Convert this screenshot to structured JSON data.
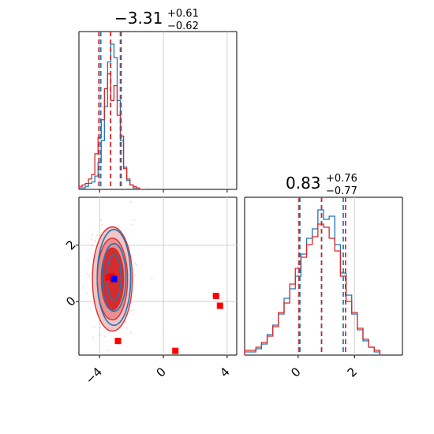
{
  "chart_data": [
    {
      "type": "histogram",
      "panel": "param1-marginal",
      "title": {
        "value": "−3.31",
        "plus": "+0.61",
        "minus": "−0.62"
      },
      "xlim": [
        -5.3,
        4.6
      ],
      "xticks": [
        -4,
        0,
        4
      ],
      "grid": true,
      "series": [
        {
          "color": "#1f77b4",
          "quantiles": [
            -3.93,
            -3.31,
            -2.7
          ]
        },
        {
          "color": "#d62728",
          "quantiles": [
            -4.05,
            -3.31,
            -2.65
          ]
        }
      ],
      "bins": [
        -5.3,
        -5.1,
        -4.9,
        -4.7,
        -4.5,
        -4.3,
        -4.1,
        -3.9,
        -3.7,
        -3.5,
        -3.3,
        -3.1,
        -2.9,
        -2.7,
        -2.5,
        -2.3,
        -2.1,
        -1.9,
        -1.7,
        -1.5,
        -1.3,
        -1.1
      ],
      "blue_counts": [
        0.01,
        0.01,
        0.02,
        0.04,
        0.05,
        0.09,
        0.18,
        0.33,
        0.56,
        0.86,
        0.98,
        0.89,
        0.6,
        0.33,
        0.15,
        0.06,
        0.03,
        0.01,
        0.01,
        0,
        0
      ],
      "red_counts": [
        0.02,
        0.03,
        0.04,
        0.07,
        0.1,
        0.24,
        0.35,
        0.47,
        0.68,
        0.78,
        0.6,
        0.7,
        0.5,
        0.36,
        0.14,
        0.07,
        0.03,
        0.02,
        0.01,
        0,
        0
      ]
    },
    {
      "type": "histogram",
      "panel": "param2-marginal",
      "title": {
        "value": "0.83",
        "plus": "+0.76",
        "minus": "−0.77"
      },
      "xlim": [
        -1.9,
        3.7
      ],
      "xticks": [
        0,
        2
      ],
      "grid": true,
      "series": [
        {
          "color": "#1f77b4",
          "quantiles": [
            0.06,
            0.83,
            1.6
          ]
        },
        {
          "color": "#d62728",
          "quantiles": [
            0.03,
            0.83,
            1.68
          ]
        }
      ],
      "bins": [
        -1.9,
        -1.7,
        -1.5,
        -1.3,
        -1.1,
        -0.9,
        -0.7,
        -0.5,
        -0.3,
        -0.1,
        0.1,
        0.3,
        0.5,
        0.7,
        0.9,
        1.1,
        1.3,
        1.5,
        1.7,
        1.9,
        2.1,
        2.3,
        2.5,
        2.7,
        2.9
      ],
      "blue_counts": [
        0.02,
        0.02,
        0.04,
        0.07,
        0.13,
        0.19,
        0.26,
        0.36,
        0.42,
        0.5,
        0.64,
        0.74,
        0.8,
        0.92,
        0.86,
        0.88,
        0.7,
        0.52,
        0.38,
        0.26,
        0.16,
        0.09,
        0.05,
        0.02
      ],
      "red_counts": [
        0.03,
        0.03,
        0.05,
        0.08,
        0.12,
        0.18,
        0.27,
        0.33,
        0.45,
        0.55,
        0.62,
        0.7,
        0.75,
        0.83,
        0.81,
        0.74,
        0.66,
        0.5,
        0.34,
        0.27,
        0.17,
        0.1,
        0.05,
        0.03
      ]
    },
    {
      "type": "scatter",
      "panel": "joint",
      "xlim": [
        -5.3,
        4.6
      ],
      "ylim": [
        -1.9,
        3.7
      ],
      "xticks": [
        -4,
        0,
        4
      ],
      "yticks": [
        0,
        2
      ],
      "grid": true,
      "contour_center": [
        -3.2,
        0.8
      ],
      "contour_levels_red": [
        [
          1.25,
          1.85
        ],
        [
          0.95,
          1.45
        ],
        [
          0.7,
          1.1
        ]
      ],
      "contour_levels_blue": [
        [
          1.05,
          1.7
        ],
        [
          0.75,
          1.2
        ],
        [
          0.45,
          0.8
        ]
      ],
      "red_markers": [
        [
          -3.25,
          0.9
        ],
        [
          -3.45,
          0.85
        ],
        [
          -2.85,
          -1.4
        ],
        [
          0.75,
          -1.75
        ],
        [
          3.3,
          0.2
        ],
        [
          3.55,
          -0.15
        ]
      ],
      "blue_markers": [
        [
          -3.1,
          0.8
        ]
      ]
    }
  ]
}
